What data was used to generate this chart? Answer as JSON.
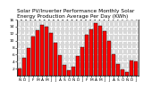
{
  "title": "Solar PV/Inverter Performance Monthly Solar\nEnergy Production Average Per Day (KWh)",
  "values": [
    2.1,
    5.0,
    7.8,
    11.2,
    13.0,
    14.5,
    14.0,
    12.3,
    9.5,
    5.8,
    3.0,
    1.5,
    2.5,
    5.5,
    8.2,
    11.6,
    13.3,
    14.9,
    14.3,
    12.7,
    9.9,
    6.2,
    3.3,
    1.9,
    1.0,
    4.2,
    4.0
  ],
  "bar_color": "#ff0000",
  "bar_edge_color": "#000000",
  "background_color": "#ffffff",
  "grid_color": "#c8c8c8",
  "ylim": [
    0,
    16
  ],
  "yticks": [
    2,
    4,
    6,
    8,
    10,
    12,
    14,
    16
  ],
  "title_fontsize": 4.2,
  "tick_fontsize": 3.2,
  "months_labels": [
    "N",
    "D",
    "J",
    "F",
    "M",
    "A",
    "M",
    "J",
    "J",
    "A",
    "S",
    "O",
    "N",
    "D",
    "J",
    "F",
    "M",
    "A",
    "M",
    "J",
    "J",
    "A",
    "S",
    "O",
    "N",
    "D",
    "J"
  ]
}
